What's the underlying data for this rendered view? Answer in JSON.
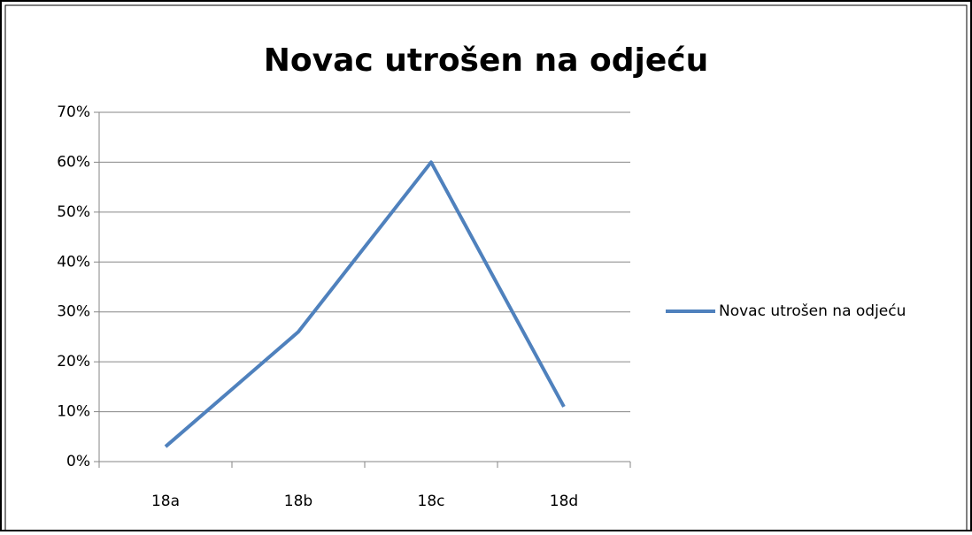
{
  "chart_data": {
    "type": "line",
    "title": "Novac utrošen na odjeću",
    "categories": [
      "18a",
      "18b",
      "18c",
      "18d"
    ],
    "series": [
      {
        "name": "Novac utrošen na odjeću",
        "color": "#4f81bd",
        "values": [
          3,
          26,
          60,
          11
        ]
      }
    ],
    "ylim": [
      0,
      70
    ],
    "yticks": [
      {
        "value": 0,
        "label": "0%"
      },
      {
        "value": 10,
        "label": "10%"
      },
      {
        "value": 20,
        "label": "20%"
      },
      {
        "value": 30,
        "label": "30%"
      },
      {
        "value": 40,
        "label": "40%"
      },
      {
        "value": 50,
        "label": "50%"
      },
      {
        "value": 60,
        "label": "60%"
      },
      {
        "value": 70,
        "label": "70%"
      }
    ],
    "grid": true,
    "legend": "right"
  }
}
